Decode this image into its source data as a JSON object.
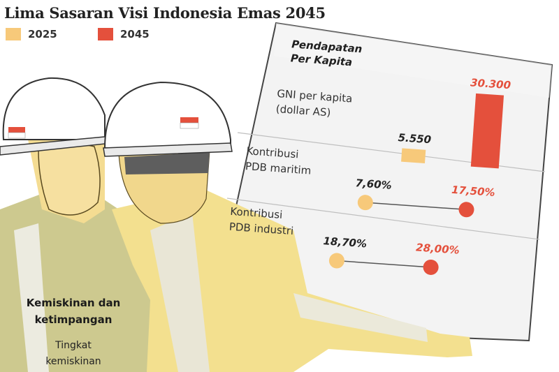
{
  "title": "Lima Sasaran Visi Indonesia Emas 2045",
  "legend": [
    {
      "label": "2025",
      "color": "#f7c97a"
    },
    {
      "label": "2045",
      "color": "#e4503c"
    }
  ],
  "board_title": [
    "Pendapatan",
    "Per Kapita"
  ],
  "bottom": {
    "heading_line1": "Kemiskinan dan",
    "heading_line2": "ketimpangan",
    "sub_line1": "Tingkat",
    "sub_line2": "kemiskinan"
  },
  "chart_data": [
    {
      "type": "bar",
      "label_lines": [
        "GNI per kapita",
        "(dollar AS)"
      ],
      "categories": [
        "2025",
        "2045"
      ],
      "values": [
        5550,
        30300
      ],
      "value_labels": [
        "5.550",
        "30.300"
      ]
    },
    {
      "type": "dumbbell",
      "label_lines": [
        "Kontribusi",
        "PDB maritim"
      ],
      "values": [
        7.6,
        17.5
      ],
      "value_labels": [
        "7,60%",
        "17,50%"
      ]
    },
    {
      "type": "dumbbell",
      "label_lines": [
        "Kontribusi",
        "PDB industri"
      ],
      "values": [
        18.7,
        28.0
      ],
      "value_labels": [
        "18,70%",
        "28,00%"
      ]
    }
  ]
}
